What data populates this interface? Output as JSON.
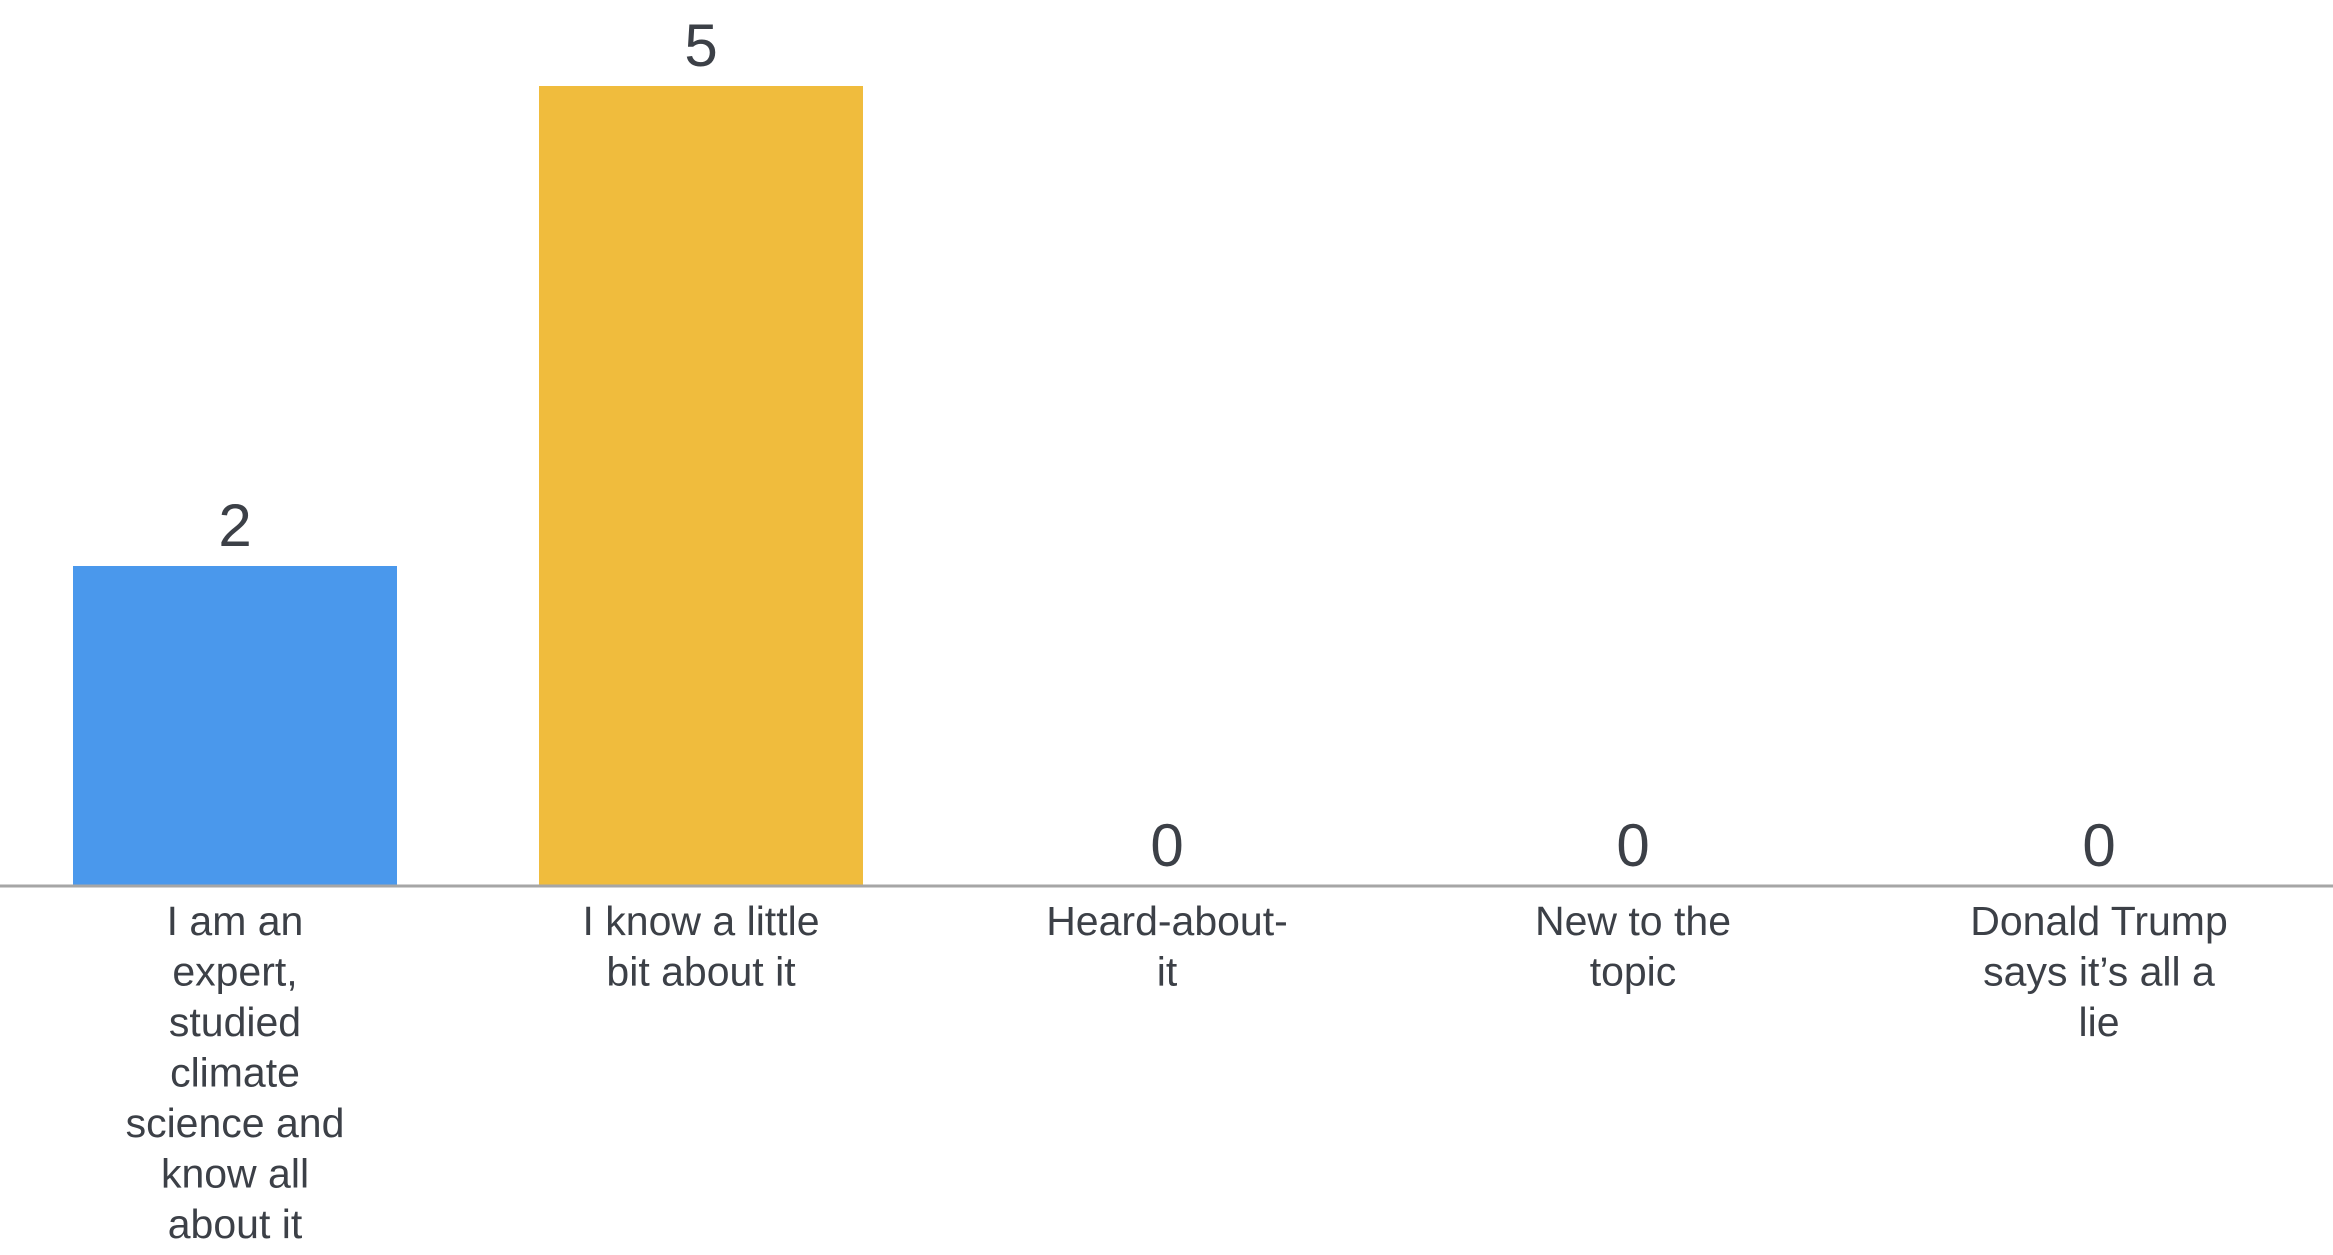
{
  "chart_data": {
    "type": "bar",
    "categories": [
      "I am an expert, studied climate science and know all about it",
      "I know a little bit about it",
      "Heard-about-it",
      "New to the topic",
      "Donald Trump says it’s all a lie"
    ],
    "category_lines": [
      [
        "I am an",
        "expert,",
        "studied",
        "climate",
        "science and",
        "know all",
        "about it"
      ],
      [
        "I know a little",
        "bit about it"
      ],
      [
        "Heard-about-",
        "it"
      ],
      [
        "New to the",
        "topic"
      ],
      [
        "Donald Trump",
        "says it’s all a",
        "lie"
      ]
    ],
    "values": [
      2,
      5,
      0,
      0,
      0
    ],
    "value_labels": [
      "2",
      "5",
      "0",
      "0",
      "0"
    ],
    "colors": [
      "#4A98EC",
      "#F0BC3D",
      "#F0BC3D",
      "#F0BC3D",
      "#F0BC3D"
    ],
    "ylim": [
      0,
      5
    ],
    "grid": false,
    "legend": "none",
    "title": "",
    "xlabel": "",
    "ylabel": ""
  },
  "style": {
    "axis_color": "#A6A6A6",
    "text_color": "#3C4047"
  }
}
